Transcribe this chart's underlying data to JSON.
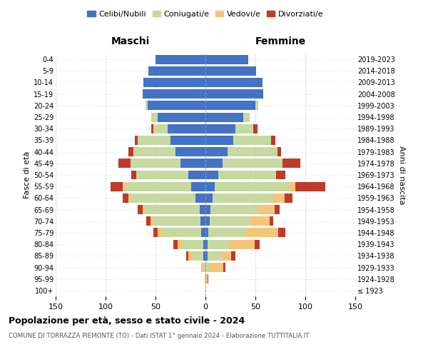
{
  "age_groups": [
    "100+",
    "95-99",
    "90-94",
    "85-89",
    "80-84",
    "75-79",
    "70-74",
    "65-69",
    "60-64",
    "55-59",
    "50-54",
    "45-49",
    "40-44",
    "35-39",
    "30-34",
    "25-29",
    "20-24",
    "15-19",
    "10-14",
    "5-9",
    "0-4"
  ],
  "birth_years": [
    "≤ 1923",
    "1924-1928",
    "1929-1933",
    "1934-1938",
    "1939-1943",
    "1944-1948",
    "1949-1953",
    "1954-1958",
    "1959-1963",
    "1964-1968",
    "1969-1973",
    "1974-1978",
    "1979-1983",
    "1984-1988",
    "1989-1993",
    "1994-1998",
    "1999-2003",
    "2004-2008",
    "2009-2013",
    "2014-2018",
    "2019-2023"
  ],
  "colors": {
    "celibi": "#4472C4",
    "coniugati": "#C5D9A0",
    "vedovi": "#F5C57A",
    "divorziati": "#C0392B"
  },
  "males": {
    "celibi": [
      0,
      0,
      0,
      2,
      2,
      4,
      5,
      6,
      10,
      14,
      17,
      25,
      30,
      35,
      38,
      48,
      58,
      63,
      62,
      57,
      50
    ],
    "coniugati": [
      0,
      1,
      2,
      12,
      22,
      40,
      47,
      55,
      65,
      67,
      52,
      50,
      42,
      33,
      14,
      5,
      2,
      0,
      0,
      0,
      0
    ],
    "vedovi": [
      0,
      0,
      2,
      3,
      4,
      4,
      3,
      2,
      2,
      2,
      0,
      0,
      0,
      0,
      0,
      1,
      0,
      0,
      0,
      0,
      0
    ],
    "divorziati": [
      0,
      0,
      0,
      2,
      4,
      4,
      4,
      5,
      6,
      12,
      5,
      12,
      5,
      3,
      2,
      0,
      0,
      0,
      0,
      0,
      0
    ]
  },
  "females": {
    "celibi": [
      0,
      0,
      0,
      2,
      2,
      3,
      4,
      5,
      7,
      9,
      13,
      17,
      22,
      28,
      30,
      38,
      50,
      58,
      57,
      51,
      43
    ],
    "coniugati": [
      0,
      0,
      4,
      14,
      22,
      38,
      40,
      48,
      60,
      75,
      58,
      60,
      50,
      38,
      18,
      6,
      3,
      0,
      0,
      0,
      0
    ],
    "vedovi": [
      0,
      2,
      14,
      10,
      25,
      32,
      20,
      16,
      12,
      6,
      0,
      0,
      0,
      0,
      0,
      0,
      0,
      0,
      0,
      0,
      0
    ],
    "divorziati": [
      0,
      1,
      2,
      4,
      5,
      7,
      4,
      5,
      8,
      30,
      9,
      18,
      4,
      4,
      4,
      0,
      0,
      0,
      0,
      0,
      0
    ]
  },
  "title": "Popolazione per età, sesso e stato civile - 2024",
  "subtitle": "COMUNE DI TORRAZZA PIEMONTE (TO) - Dati ISTAT 1° gennaio 2024 - Elaborazione TUTTITALIA.IT",
  "xlabel_left": "Maschi",
  "xlabel_right": "Femmine",
  "ylabel_left": "Fasce di età",
  "ylabel_right": "Anni di nascita",
  "xlim": 150,
  "bg_color": "#FFFFFF",
  "grid_color": "#CCCCCC",
  "legend_labels": [
    "Celibi/Nubili",
    "Coniugati/e",
    "Vedovi/e",
    "Divorziati/e"
  ]
}
